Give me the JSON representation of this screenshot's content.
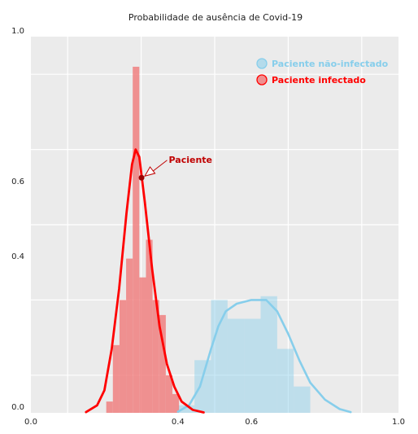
{
  "chart_data": {
    "type": "histogram+kde",
    "title": "Probabilidade de ausência de Covid-19",
    "xlabel": "",
    "ylabel": "",
    "xlim": [
      0.0,
      1.0
    ],
    "ylim": [
      0.0,
      1.0
    ],
    "x_ticks": [
      "0.0",
      "0.4",
      "0.6",
      "1.0"
    ],
    "x_tick_values": [
      0.0,
      0.4,
      0.6,
      1.0
    ],
    "y_ticks": [
      "0.0",
      "0.4",
      "0.6",
      "1.0"
    ],
    "y_tick_values": [
      0.0,
      0.4,
      0.6,
      1.0
    ],
    "grid": true,
    "legend_position": "top-right",
    "series": [
      {
        "name": "Paciente não-infectado",
        "color": "#87CEEB",
        "bins": [
          {
            "x0": 0.4,
            "x1": 0.445,
            "h": 0.02
          },
          {
            "x0": 0.445,
            "x1": 0.49,
            "h": 0.14
          },
          {
            "x0": 0.49,
            "x1": 0.535,
            "h": 0.3
          },
          {
            "x0": 0.535,
            "x1": 0.58,
            "h": 0.25
          },
          {
            "x0": 0.58,
            "x1": 0.625,
            "h": 0.25
          },
          {
            "x0": 0.625,
            "x1": 0.67,
            "h": 0.31
          },
          {
            "x0": 0.67,
            "x1": 0.715,
            "h": 0.17
          },
          {
            "x0": 0.715,
            "x1": 0.76,
            "h": 0.07
          },
          {
            "x0": 0.76,
            "x1": 0.805,
            "h": 0.0
          }
        ],
        "kde": [
          [
            0.4,
            0.003
          ],
          [
            0.43,
            0.02
          ],
          [
            0.46,
            0.07
          ],
          [
            0.49,
            0.17
          ],
          [
            0.51,
            0.23
          ],
          [
            0.53,
            0.27
          ],
          [
            0.56,
            0.29
          ],
          [
            0.6,
            0.3
          ],
          [
            0.64,
            0.3
          ],
          [
            0.67,
            0.27
          ],
          [
            0.7,
            0.21
          ],
          [
            0.73,
            0.14
          ],
          [
            0.76,
            0.08
          ],
          [
            0.8,
            0.035
          ],
          [
            0.84,
            0.01
          ],
          [
            0.87,
            0.002
          ]
        ]
      },
      {
        "name": "Paciente infectado",
        "color": "#F08080",
        "line_color": "#FF0000",
        "bins": [
          {
            "x0": 0.205,
            "x1": 0.223,
            "h": 0.03
          },
          {
            "x0": 0.223,
            "x1": 0.241,
            "h": 0.18
          },
          {
            "x0": 0.241,
            "x1": 0.259,
            "h": 0.3
          },
          {
            "x0": 0.259,
            "x1": 0.277,
            "h": 0.41
          },
          {
            "x0": 0.277,
            "x1": 0.295,
            "h": 0.92
          },
          {
            "x0": 0.295,
            "x1": 0.313,
            "h": 0.36
          },
          {
            "x0": 0.313,
            "x1": 0.331,
            "h": 0.46
          },
          {
            "x0": 0.331,
            "x1": 0.349,
            "h": 0.3
          },
          {
            "x0": 0.349,
            "x1": 0.367,
            "h": 0.26
          },
          {
            "x0": 0.367,
            "x1": 0.385,
            "h": 0.1
          },
          {
            "x0": 0.385,
            "x1": 0.403,
            "h": 0.05
          },
          {
            "x0": 0.403,
            "x1": 0.421,
            "h": 0.0
          }
        ],
        "kde": [
          [
            0.15,
            0.002
          ],
          [
            0.18,
            0.02
          ],
          [
            0.2,
            0.06
          ],
          [
            0.22,
            0.17
          ],
          [
            0.24,
            0.33
          ],
          [
            0.26,
            0.53
          ],
          [
            0.275,
            0.66
          ],
          [
            0.285,
            0.7
          ],
          [
            0.295,
            0.68
          ],
          [
            0.31,
            0.56
          ],
          [
            0.33,
            0.38
          ],
          [
            0.35,
            0.23
          ],
          [
            0.37,
            0.13
          ],
          [
            0.39,
            0.07
          ],
          [
            0.41,
            0.03
          ],
          [
            0.44,
            0.008
          ],
          [
            0.47,
            0.001
          ]
        ]
      }
    ],
    "annotation": {
      "text": "Paciente",
      "point": [
        0.301,
        0.625
      ],
      "text_pos": [
        0.375,
        0.665
      ],
      "color": "#c00000"
    }
  }
}
